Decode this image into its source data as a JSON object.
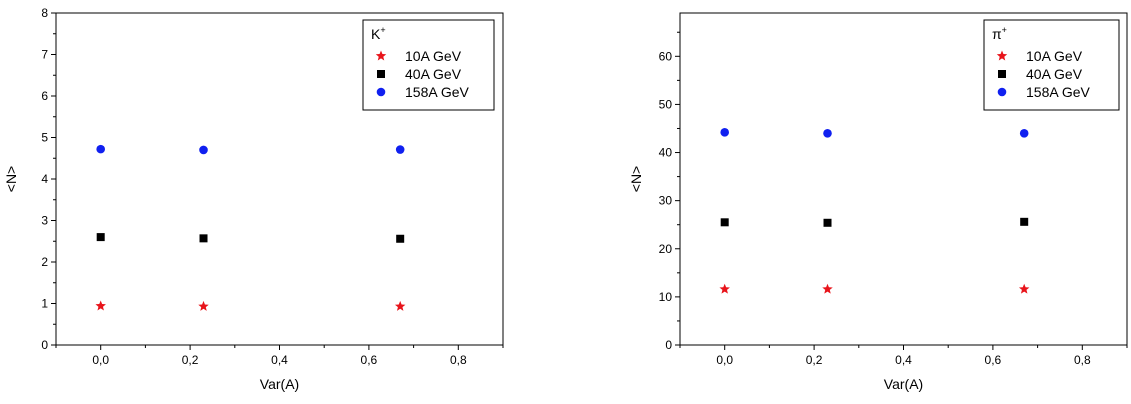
{
  "chart_data": [
    {
      "type": "scatter",
      "title": "",
      "xlabel": "Var(A)",
      "ylabel": "<N>",
      "xlim": [
        -0.1,
        0.9
      ],
      "ylim": [
        0,
        8
      ],
      "xticks": [
        "0,0",
        "0,2",
        "0,4",
        "0,6",
        "0,8"
      ],
      "xtick_values": [
        0.0,
        0.2,
        0.4,
        0.6,
        0.8
      ],
      "yticks": [
        "0",
        "1",
        "2",
        "3",
        "4",
        "5",
        "6",
        "7",
        "8"
      ],
      "ytick_values": [
        0,
        1,
        2,
        3,
        4,
        5,
        6,
        7,
        8
      ],
      "grid": false,
      "legend": {
        "placement": "top-right",
        "title_base": "K",
        "title_sup": "+"
      },
      "x": [
        0.0,
        0.23,
        0.67
      ],
      "series": [
        {
          "name": "10A GeV",
          "marker": "star",
          "color": "#e8141b",
          "values": [
            0.94,
            0.93,
            0.93
          ]
        },
        {
          "name": "40A GeV",
          "marker": "square",
          "color": "#000000",
          "values": [
            2.6,
            2.57,
            2.56
          ]
        },
        {
          "name": "158A GeV",
          "marker": "circle",
          "color": "#1020f0",
          "values": [
            4.72,
            4.7,
            4.71
          ]
        }
      ]
    },
    {
      "type": "scatter",
      "title": "",
      "xlabel": "Var(A)",
      "ylabel": "<N>",
      "xlim": [
        -0.1,
        0.9
      ],
      "ylim": [
        0,
        69
      ],
      "xticks": [
        "0,0",
        "0,2",
        "0,4",
        "0,6",
        "0,8"
      ],
      "xtick_values": [
        0.0,
        0.2,
        0.4,
        0.6,
        0.8
      ],
      "yticks": [
        "0",
        "10",
        "20",
        "30",
        "40",
        "50",
        "60"
      ],
      "ytick_values": [
        0,
        10,
        20,
        30,
        40,
        50,
        60
      ],
      "grid": false,
      "legend": {
        "placement": "top-right",
        "title_base": "π",
        "title_sup": "+"
      },
      "x": [
        0.0,
        0.23,
        0.67
      ],
      "series": [
        {
          "name": "10A GeV",
          "marker": "star",
          "color": "#e8141b",
          "values": [
            11.6,
            11.6,
            11.6
          ]
        },
        {
          "name": "40A GeV",
          "marker": "square",
          "color": "#000000",
          "values": [
            25.5,
            25.4,
            25.6
          ]
        },
        {
          "name": "158A GeV",
          "marker": "circle",
          "color": "#1020f0",
          "values": [
            44.2,
            44.0,
            44.0
          ]
        }
      ]
    }
  ]
}
